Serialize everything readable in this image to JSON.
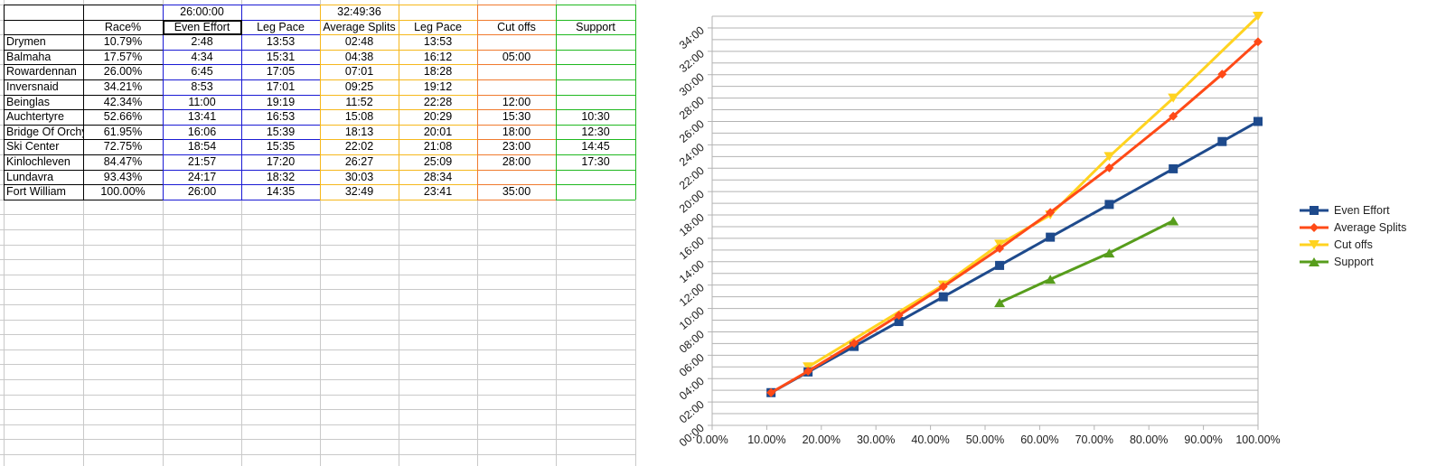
{
  "sheet": {
    "top_values": {
      "even_total": "26:00:00",
      "average_total": "32:49:36"
    },
    "headers": [
      "",
      "Race%",
      "Even Effort",
      "Leg Pace",
      "Average Splits",
      "Leg Pace",
      "Cut offs",
      "Support"
    ],
    "rows": [
      {
        "name": "Drymen",
        "race": "10.79%",
        "even": "2:48",
        "even_pace": "13:53",
        "avg": "02:48",
        "avg_pace": "13:53",
        "cutoff": "",
        "support": ""
      },
      {
        "name": "Balmaha",
        "race": "17.57%",
        "even": "4:34",
        "even_pace": "15:31",
        "avg": "04:38",
        "avg_pace": "16:12",
        "cutoff": "05:00",
        "support": ""
      },
      {
        "name": "Rowardennan",
        "race": "26.00%",
        "even": "6:45",
        "even_pace": "17:05",
        "avg": "07:01",
        "avg_pace": "18:28",
        "cutoff": "",
        "support": ""
      },
      {
        "name": "Inversnaid",
        "race": "34.21%",
        "even": "8:53",
        "even_pace": "17:01",
        "avg": "09:25",
        "avg_pace": "19:12",
        "cutoff": "",
        "support": ""
      },
      {
        "name": "Beinglas",
        "race": "42.34%",
        "even": "11:00",
        "even_pace": "19:19",
        "avg": "11:52",
        "avg_pace": "22:28",
        "cutoff": "12:00",
        "support": ""
      },
      {
        "name": "Auchtertyre",
        "race": "52.66%",
        "even": "13:41",
        "even_pace": "16:53",
        "avg": "15:08",
        "avg_pace": "20:29",
        "cutoff": "15:30",
        "support": "10:30"
      },
      {
        "name": "Bridge Of Orchy",
        "race": "61.95%",
        "even": "16:06",
        "even_pace": "15:39",
        "avg": "18:13",
        "avg_pace": "20:01",
        "cutoff": "18:00",
        "support": "12:30"
      },
      {
        "name": "Ski Center",
        "race": "72.75%",
        "even": "18:54",
        "even_pace": "15:35",
        "avg": "22:02",
        "avg_pace": "21:08",
        "cutoff": "23:00",
        "support": "14:45"
      },
      {
        "name": "Kinlochleven",
        "race": "84.47%",
        "even": "21:57",
        "even_pace": "17:20",
        "avg": "26:27",
        "avg_pace": "25:09",
        "cutoff": "28:00",
        "support": "17:30"
      },
      {
        "name": "Lundavra",
        "race": "93.43%",
        "even": "24:17",
        "even_pace": "18:32",
        "avg": "30:03",
        "avg_pace": "28:34",
        "cutoff": "",
        "support": ""
      },
      {
        "name": "Fort William",
        "race": "100.00%",
        "even": "26:00",
        "even_pace": "14:35",
        "avg": "32:49",
        "avg_pace": "23:41",
        "cutoff": "35:00",
        "support": ""
      }
    ]
  },
  "colors": {
    "even_block": "#1a1ad4",
    "average_block": "#f6b81c",
    "cutoff_block": "#f07a2e",
    "support_block": "#1fb81f",
    "grid": "#c9c9c9"
  },
  "chart_data": {
    "type": "line",
    "x_ticks": [
      "0.00%",
      "10.00%",
      "20.00%",
      "30.00%",
      "40.00%",
      "50.00%",
      "60.00%",
      "70.00%",
      "80.00%",
      "90.00%",
      "100.00%"
    ],
    "y_ticks": [
      "00:00",
      "02:00",
      "04:00",
      "06:00",
      "08:00",
      "10:00",
      "12:00",
      "14:00",
      "16:00",
      "18:00",
      "20:00",
      "22:00",
      "24:00",
      "26:00",
      "28:00",
      "30:00",
      "32:00",
      "34:00"
    ],
    "xlim": [
      0,
      100
    ],
    "ylim_hours": [
      0,
      35
    ],
    "grid": true,
    "legend_position": "right",
    "series": [
      {
        "name": "Even Effort",
        "color": "#1e4a8c",
        "marker": "square",
        "points": [
          [
            10.79,
            2.8
          ],
          [
            17.57,
            4.567
          ],
          [
            26.0,
            6.75
          ],
          [
            34.21,
            8.883
          ],
          [
            42.34,
            11.0
          ],
          [
            52.66,
            13.683
          ],
          [
            61.95,
            16.1
          ],
          [
            72.75,
            18.9
          ],
          [
            84.47,
            21.95
          ],
          [
            93.43,
            24.283
          ],
          [
            100.0,
            26.0
          ]
        ]
      },
      {
        "name": "Average Splits",
        "color": "#ff4a17",
        "marker": "diamond",
        "points": [
          [
            10.79,
            2.8
          ],
          [
            17.57,
            4.633
          ],
          [
            26.0,
            7.017
          ],
          [
            34.21,
            9.417
          ],
          [
            42.34,
            11.867
          ],
          [
            52.66,
            15.133
          ],
          [
            61.95,
            18.217
          ],
          [
            72.75,
            22.033
          ],
          [
            84.47,
            26.45
          ],
          [
            93.43,
            30.05
          ],
          [
            100.0,
            32.817
          ]
        ]
      },
      {
        "name": "Cut offs",
        "color": "#ffd320",
        "marker": "triangle-down",
        "points": [
          [
            17.57,
            5.0
          ],
          [
            42.34,
            12.0
          ],
          [
            52.66,
            15.5
          ],
          [
            61.95,
            18.0
          ],
          [
            72.75,
            23.0
          ],
          [
            84.47,
            28.0
          ],
          [
            100.0,
            35.0
          ]
        ]
      },
      {
        "name": "Support",
        "color": "#579d1c",
        "marker": "triangle-up",
        "points": [
          [
            52.66,
            10.5
          ],
          [
            61.95,
            12.5
          ],
          [
            72.75,
            14.75
          ],
          [
            84.47,
            17.5
          ]
        ]
      }
    ]
  }
}
